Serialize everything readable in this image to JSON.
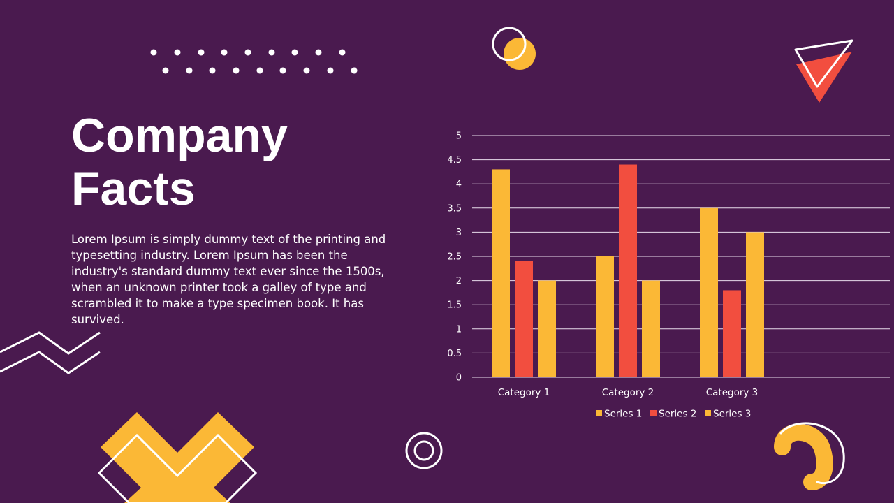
{
  "slide": {
    "title_line1": "Company",
    "title_line2": "Facts",
    "body": "Lorem Ipsum is simply dummy text of the printing and typesetting industry. Lorem Ipsum has been the industry's standard dummy text ever since the 1500s, when an unknown printer took a galley of type and scrambled it to make a type specimen book. It has survived."
  },
  "colors": {
    "background": "#4a1a4f",
    "yellow": "#fbb836",
    "red": "#f24e3f",
    "white": "#ffffff"
  },
  "chart_data": {
    "type": "bar",
    "categories": [
      "Category 1",
      "Category 2",
      "Category 3"
    ],
    "series": [
      {
        "name": "Series 1",
        "values": [
          4.3,
          2.5,
          3.5
        ],
        "color": "#fbb836"
      },
      {
        "name": "Series 2",
        "values": [
          2.4,
          4.4,
          1.8
        ],
        "color": "#f24e3f"
      },
      {
        "name": "Series 3",
        "values": [
          2.0,
          2.0,
          3.0
        ],
        "color": "#fbb836"
      }
    ],
    "yticks": [
      "0",
      "0.5",
      "1",
      "1.5",
      "2",
      "2.5",
      "3",
      "3.5",
      "4",
      "4.5",
      "5"
    ],
    "ylim": [
      0,
      5
    ],
    "grid": true,
    "legend": "bottom"
  }
}
